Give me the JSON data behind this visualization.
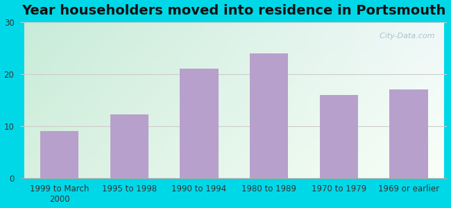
{
  "title": "Year householders moved into residence in Portsmouth",
  "categories": [
    "1999 to March\n2000",
    "1995 to 1998",
    "1990 to 1994",
    "1980 to 1989",
    "1970 to 1979",
    "1969 or earlier"
  ],
  "values": [
    9.0,
    12.2,
    21.0,
    24.0,
    16.0,
    17.0
  ],
  "bar_color": "#b8a0cc",
  "ylim": [
    0,
    30
  ],
  "yticks": [
    0,
    10,
    20,
    30
  ],
  "bg_outer": "#00d8e8",
  "bg_grad_topleft": "#c8ecd8",
  "bg_grad_right": "#f0f8f8",
  "grid_color": "#cccccc",
  "title_fontsize": 14,
  "tick_fontsize": 8.5,
  "watermark": "  City-Data.com"
}
